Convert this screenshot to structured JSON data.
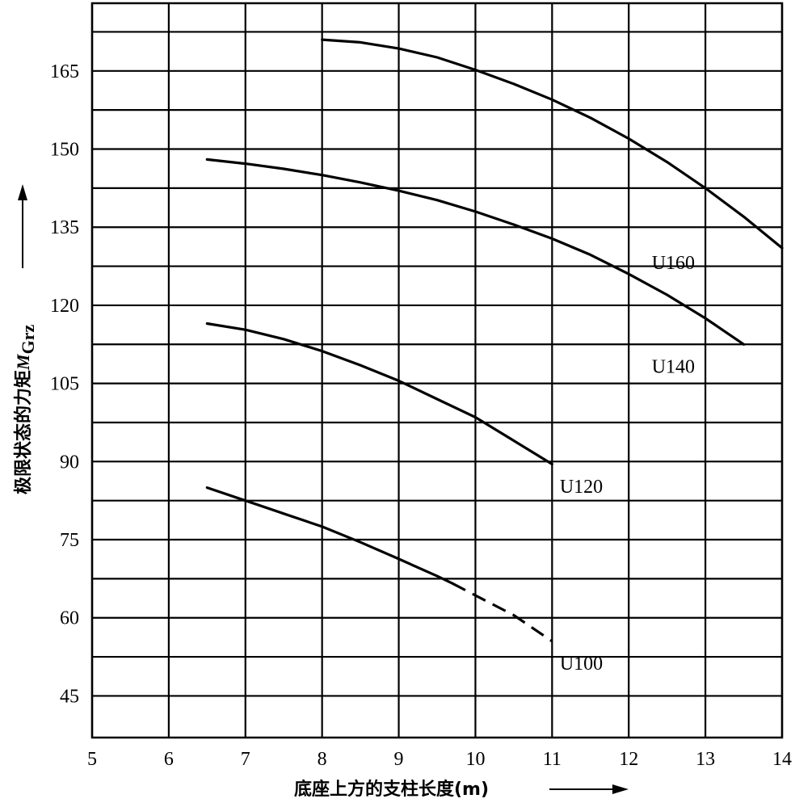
{
  "chart_data": {
    "type": "line",
    "xlabel": "底座上方的支柱长度(m)",
    "ylabel_text": "极限状态的力矩",
    "ylabel_symbol": "M",
    "ylabel_subscript": "Grz",
    "xlim": [
      5,
      14
    ],
    "ylim": [
      37,
      178
    ],
    "x_ticks": [
      5,
      6,
      7,
      8,
      9,
      10,
      11,
      12,
      13,
      14
    ],
    "y_ticks": [
      45,
      60,
      75,
      90,
      105,
      120,
      135,
      150,
      165
    ],
    "x_gridlines": [
      5,
      6,
      7,
      8,
      9,
      10,
      11,
      12,
      13,
      14
    ],
    "y_gridlines": [
      45,
      52.5,
      60,
      67.5,
      75,
      82.5,
      90,
      97.5,
      105,
      112.5,
      120,
      127.5,
      135,
      142.5,
      150,
      157.5,
      165,
      172.5
    ],
    "grid": true,
    "series": [
      {
        "name": "U160",
        "points": [
          [
            8.0,
            171
          ],
          [
            8.5,
            170.5
          ],
          [
            9.0,
            169.3
          ],
          [
            9.5,
            167.6
          ],
          [
            10.0,
            165.2
          ],
          [
            10.5,
            162.5
          ],
          [
            11.0,
            159.5
          ],
          [
            11.5,
            156
          ],
          [
            12.0,
            152
          ],
          [
            12.5,
            147.5
          ],
          [
            13.0,
            142.5
          ],
          [
            13.5,
            137
          ],
          [
            14.0,
            131
          ]
        ],
        "style": "solid"
      },
      {
        "name": "U140",
        "points": [
          [
            6.5,
            148
          ],
          [
            7.0,
            147.2
          ],
          [
            7.5,
            146.2
          ],
          [
            8.0,
            145
          ],
          [
            8.5,
            143.6
          ],
          [
            9.0,
            142
          ],
          [
            9.5,
            140.2
          ],
          [
            10.0,
            138
          ],
          [
            10.5,
            135.5
          ],
          [
            11.0,
            132.8
          ],
          [
            11.5,
            129.7
          ],
          [
            12.0,
            126
          ],
          [
            12.5,
            122
          ],
          [
            13.0,
            117.5
          ],
          [
            13.5,
            112.5
          ]
        ],
        "style": "solid"
      },
      {
        "name": "U120",
        "points": [
          [
            6.5,
            116.5
          ],
          [
            7.0,
            115.3
          ],
          [
            7.5,
            113.5
          ],
          [
            8.0,
            111.2
          ],
          [
            8.5,
            108.5
          ],
          [
            9.0,
            105.5
          ],
          [
            9.5,
            102
          ],
          [
            10.0,
            98.5
          ],
          [
            10.5,
            94
          ],
          [
            11.0,
            89.5
          ]
        ],
        "style": "solid"
      },
      {
        "name": "U100",
        "points": [
          [
            6.5,
            85
          ],
          [
            7.0,
            82.5
          ],
          [
            7.5,
            80
          ],
          [
            8.0,
            77.5
          ],
          [
            8.5,
            74.5
          ],
          [
            9.0,
            71.3
          ],
          [
            9.5,
            68
          ],
          [
            9.7,
            66.6
          ]
        ],
        "dashed_points": [
          [
            9.7,
            66.6
          ],
          [
            10.0,
            64.3
          ],
          [
            10.5,
            60.5
          ],
          [
            11.0,
            55.5
          ]
        ],
        "style": "solid+dashed"
      }
    ],
    "labels": {
      "U160": {
        "x": 12.3,
        "y": 127
      },
      "U140": {
        "x": 12.3,
        "y": 107
      },
      "U120": {
        "x": 11.1,
        "y": 84
      },
      "U100": {
        "x": 11.1,
        "y": 50
      }
    }
  }
}
